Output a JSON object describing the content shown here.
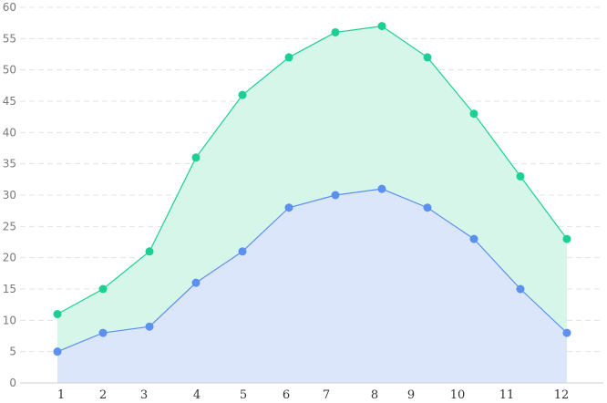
{
  "chart_data": {
    "type": "area",
    "x": [
      "1",
      "2",
      "3",
      "4",
      "5",
      "6",
      "7",
      "8",
      "9",
      "10",
      "11",
      "12"
    ],
    "series": [
      {
        "values": [
          5,
          8,
          9,
          16,
          21,
          28,
          30,
          31,
          28,
          23,
          15,
          8
        ],
        "color": "#5b8ff0",
        "fill": "#dbe6fa"
      },
      {
        "values": [
          11,
          15,
          21,
          36,
          46,
          52,
          56,
          57,
          52,
          43,
          33,
          23
        ],
        "color": "#1ccf95",
        "fill": "#d6f6ea"
      }
    ],
    "ylim": [
      0,
      60
    ],
    "yticks": [
      "0",
      "5",
      "10",
      "15",
      "20",
      "25",
      "30",
      "35",
      "40",
      "45",
      "50",
      "55",
      "60"
    ],
    "grid": true,
    "gridline_color": "#e3e3e3",
    "title": "",
    "xlabel": "",
    "ylabel": ""
  }
}
